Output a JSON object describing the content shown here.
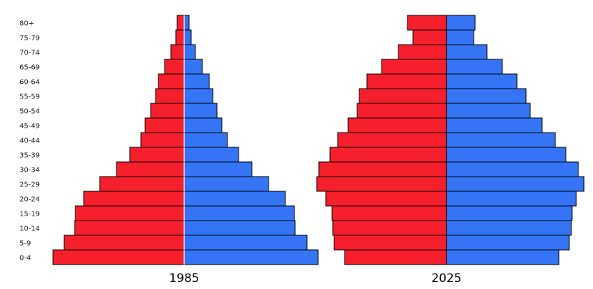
{
  "chart_data": {
    "type": "bar",
    "age_groups": [
      "0-4",
      "5-9",
      "10-14",
      "15-19",
      "20-24",
      "25-29",
      "30-34",
      "35-39",
      "40-44",
      "45-49",
      "50-54",
      "55-59",
      "60-64",
      "65-69",
      "70-74",
      "75-79",
      "80+"
    ],
    "colors": {
      "left": "#f5202c",
      "right": "#3575f5",
      "divider_1985": "#ffffff",
      "divider_2025": "#000000"
    },
    "pyramids": [
      {
        "year": "1985",
        "left_values": [
          188,
          172,
          157,
          156,
          144,
          121,
          97,
          78,
          62,
          56,
          48,
          41,
          37,
          28,
          19,
          12,
          10
        ],
        "right_values": [
          192,
          176,
          159,
          158,
          145,
          121,
          97,
          78,
          62,
          54,
          47,
          41,
          36,
          26,
          16,
          10,
          7
        ]
      },
      {
        "year": "2025",
        "left_values": [
          146,
          161,
          163,
          164,
          173,
          186,
          183,
          167,
          156,
          141,
          128,
          125,
          114,
          93,
          69,
          48,
          56
        ],
        "right_values": [
          161,
          176,
          179,
          180,
          186,
          197,
          189,
          171,
          156,
          137,
          120,
          114,
          101,
          80,
          58,
          39,
          41
        ]
      }
    ]
  }
}
